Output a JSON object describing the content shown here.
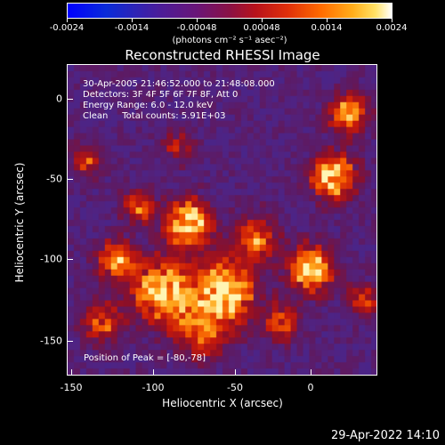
{
  "colorbar": {
    "ticks": [
      "-0.0024",
      "-0.0014",
      "-0.00048",
      "0.00048",
      "0.0014",
      "0.0024"
    ],
    "units": "(photons cm⁻² s⁻¹ asec⁻²)"
  },
  "title": "Reconstructed RHESSI Image",
  "info": {
    "line1": "30-Apr-2005 21:46:52.000 to 21:48:08.000",
    "line2": "Detectors: 3F 4F 5F 6F 7F 8F, Att 0",
    "line3": "Energy Range: 6.0 - 12.0 keV",
    "line4": "Clean     Total counts: 5.91E+03",
    "peak": "Position of Peak = [-80,-78]"
  },
  "axes": {
    "xlabel": "Heliocentric X (arcsec)",
    "ylabel": "Heliocentric Y (arcsec)",
    "xticks": [
      "-150",
      "-100",
      "-50",
      "0"
    ],
    "yticks": [
      "0",
      "-50",
      "-100",
      "-150"
    ]
  },
  "footer": {
    "date": "29-Apr-2022 14:10"
  }
}
